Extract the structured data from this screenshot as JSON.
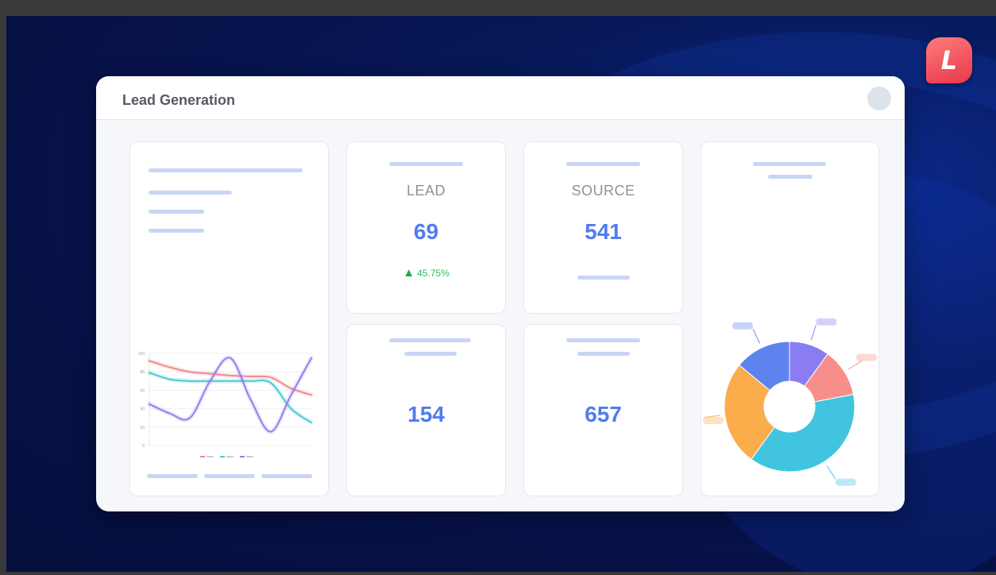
{
  "window": {
    "title": "Lead Generation"
  },
  "app_icon": {
    "letter": "L",
    "color": "#e8384a"
  },
  "cards": {
    "lead": {
      "label": "LEAD",
      "value": "69",
      "trend_text": "45.75%",
      "trend_direction": "up",
      "trend_color": "#2fbf5d"
    },
    "source": {
      "label": "SOURCE",
      "value": "541"
    },
    "metric_3": {
      "value": "154"
    },
    "metric_4": {
      "value": "657"
    }
  },
  "colors": {
    "accent": "#4f7cf0",
    "placeholder_bar": "#c9d5f5",
    "background": "#06124a"
  },
  "chart_data": [
    {
      "type": "line",
      "y_ticks": [
        "100",
        "80",
        "60",
        "40",
        "20",
        "0"
      ],
      "ylim": [
        0,
        100
      ],
      "x": [
        0,
        1,
        2,
        3,
        4,
        5,
        6,
        7,
        8
      ],
      "series": [
        {
          "values": [
            92,
            85,
            80,
            78,
            76,
            75,
            74,
            62,
            55
          ],
          "color": "#f28b8b"
        },
        {
          "values": [
            79,
            72,
            70,
            70,
            70,
            70,
            68,
            40,
            25
          ],
          "color": "#4cc9d8"
        },
        {
          "values": [
            45,
            35,
            30,
            70,
            95,
            50,
            15,
            55,
            95
          ],
          "color": "#9b7bf0"
        }
      ],
      "legend_placement": "bottom",
      "grid": true
    },
    {
      "type": "pie",
      "donut": true,
      "slices": [
        {
          "value": 10,
          "color": "#8a7cf3"
        },
        {
          "value": 12,
          "color": "#f78e8a"
        },
        {
          "value": 38,
          "color": "#40c4e0"
        },
        {
          "value": 26,
          "color": "#fbad4c"
        },
        {
          "value": 14,
          "color": "#5e83ee"
        }
      ]
    }
  ]
}
